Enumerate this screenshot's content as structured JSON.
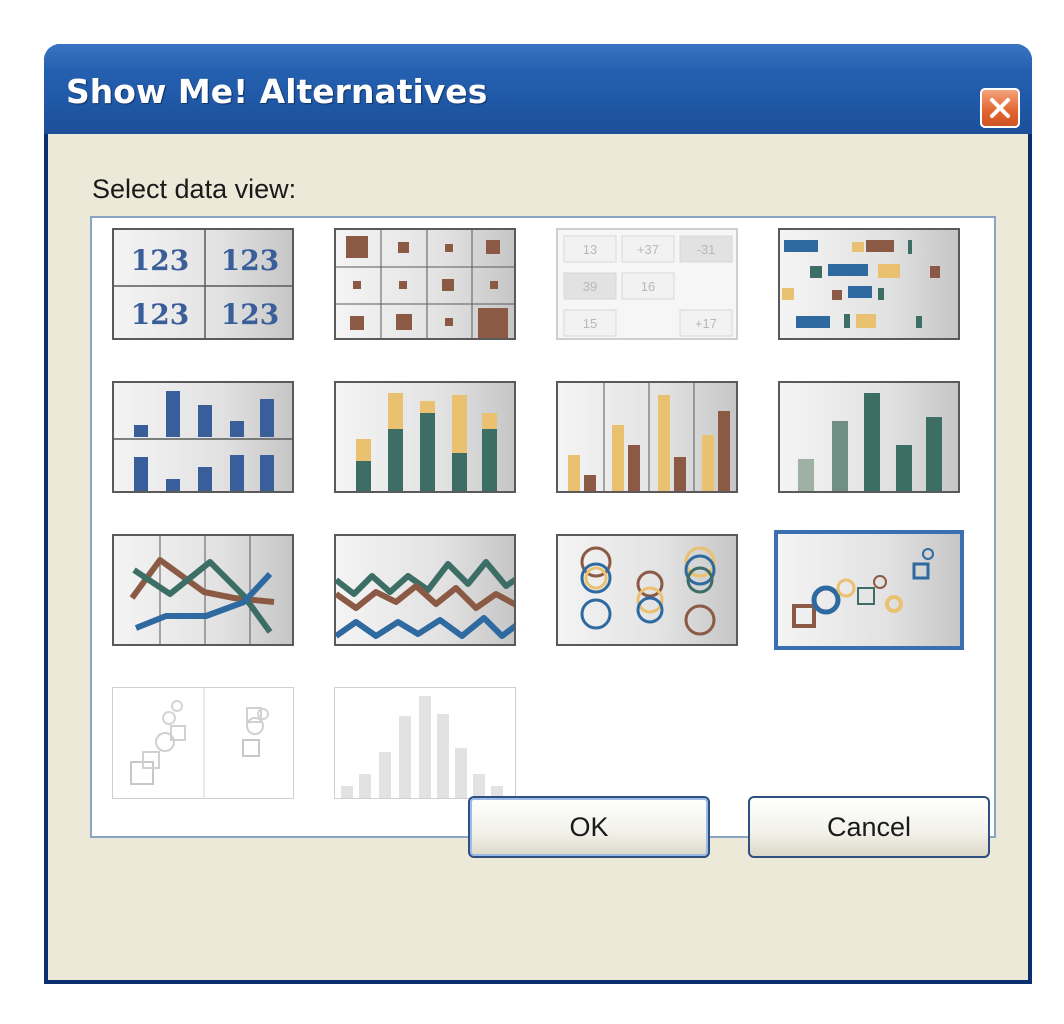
{
  "window": {
    "title": "Show Me! Alternatives",
    "close_icon": "close-icon"
  },
  "prompt": "Select data view:",
  "tiles": [
    {
      "name": "text-table",
      "selected": false,
      "enabled": true
    },
    {
      "name": "heat-map",
      "selected": false,
      "enabled": true
    },
    {
      "name": "highlight-table",
      "selected": false,
      "enabled": true
    },
    {
      "name": "gantt-chart",
      "selected": false,
      "enabled": true
    },
    {
      "name": "side-by-side-bars",
      "selected": false,
      "enabled": true
    },
    {
      "name": "stacked-bars",
      "selected": false,
      "enabled": true
    },
    {
      "name": "grouped-bars",
      "selected": false,
      "enabled": true
    },
    {
      "name": "simple-bars",
      "selected": false,
      "enabled": true
    },
    {
      "name": "lines-discrete",
      "selected": false,
      "enabled": true
    },
    {
      "name": "lines-continuous",
      "selected": false,
      "enabled": true
    },
    {
      "name": "circle-views",
      "selected": false,
      "enabled": true
    },
    {
      "name": "scatter-plot",
      "selected": true,
      "enabled": true
    },
    {
      "name": "scatter-matrix",
      "selected": false,
      "enabled": false
    },
    {
      "name": "histogram",
      "selected": false,
      "enabled": false
    }
  ],
  "text_table": {
    "cells": [
      "123",
      "123",
      "123",
      "123"
    ]
  },
  "highlight_table": {
    "cells": [
      "13",
      "+37",
      "-31",
      "39",
      "16",
      "",
      "15",
      "",
      "+17"
    ]
  },
  "buttons": {
    "ok": "OK",
    "cancel": "Cancel"
  },
  "colors": {
    "brown": "#8b5a44",
    "teal": "#3c6e66",
    "blue": "#2e6aa0",
    "gold": "#e9c170",
    "navy": "#3a5e9a",
    "selection": "#3c6fb0"
  }
}
